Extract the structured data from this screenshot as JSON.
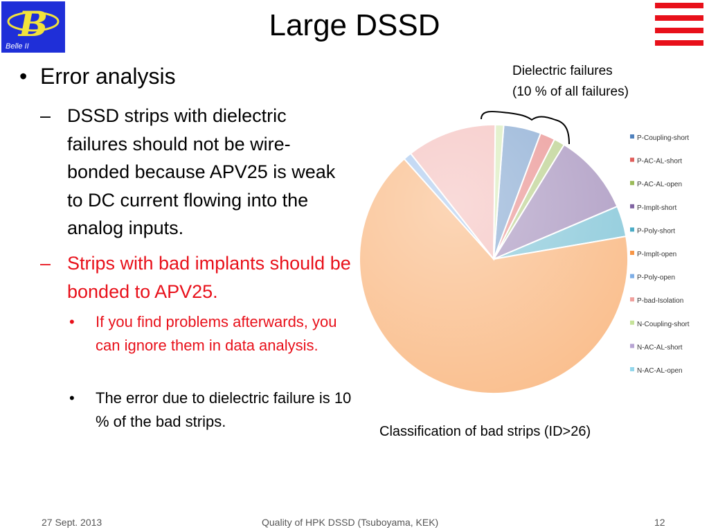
{
  "header": {
    "logo_text": "Belle II",
    "title": "Large DSSD"
  },
  "content": {
    "heading": "Error analysis",
    "point1": "DSSD strips with dielectric failures should not be wire-bonded because APV25 is weak to DC current flowing into the analog inputs.",
    "point2": "Strips with bad implants should be bonded to APV25.",
    "sub1": "If you find problems afterwards, you can ignore them in data analysis.",
    "sub2": "The error due to dielectric failure is 10 % of the bad strips."
  },
  "annotation": {
    "line1": "Dielectric failures",
    "line2": "(10 % of all failures)"
  },
  "caption": "Classification of bad strips (ID>26)",
  "chart_data": {
    "type": "pie",
    "title": "",
    "legend_position": "right",
    "slices": [
      {
        "label": "P-Coupling-short",
        "value": 4.5,
        "color": "#4f81bd"
      },
      {
        "label": "P-AC-AL-short",
        "value": 1.8,
        "color": "#e05e5b"
      },
      {
        "label": "P-AC-AL-open",
        "value": 1.3,
        "color": "#9bbb59"
      },
      {
        "label": "P-Implt-short",
        "value": 9.8,
        "color": "#8064a2"
      },
      {
        "label": "P-Poly-short",
        "value": 3.7,
        "color": "#4bacc6"
      },
      {
        "label": "P-Implt-open",
        "value": 66.1,
        "color": "#f79646"
      },
      {
        "label": "P-Poly-open",
        "value": 1.0,
        "color": "#7eaee6"
      },
      {
        "label": "P-bad-Isolation",
        "value": 10.8,
        "color": "#f0a19e"
      },
      {
        "label": "N-Coupling-short",
        "value": 1.0,
        "color": "#c6e39a"
      },
      {
        "label": "N-AC-AL-short",
        "value": 0,
        "color": "#b7a4d3"
      },
      {
        "label": "N-AC-AL-open",
        "value": 0,
        "color": "#93d7ec"
      }
    ]
  },
  "footer": {
    "date": "27 Sept. 2013",
    "center": "Quality of HPK DSSD (Tsuboyama, KEK)",
    "page": "12"
  }
}
